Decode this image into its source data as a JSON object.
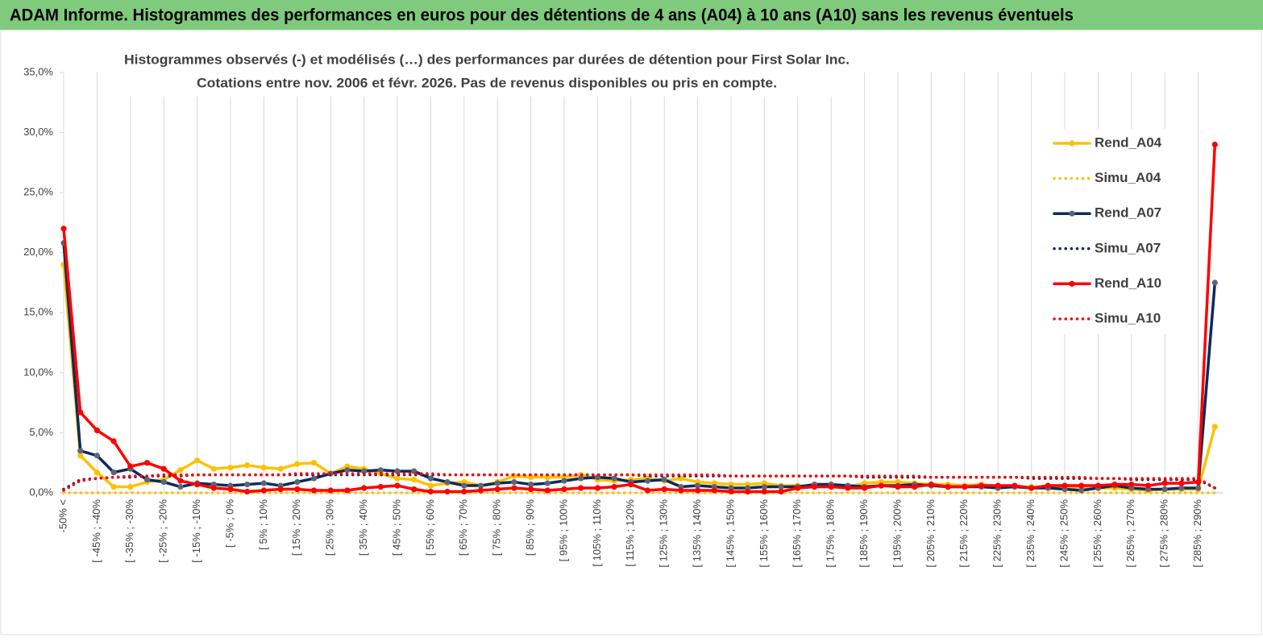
{
  "header": {
    "title": "ADAM Informe. Histogrammes des performances en euros pour des détentions de 4 ans (A04) à 10 ans (A10) sans les revenus éventuels"
  },
  "chart_data": {
    "type": "line",
    "title": [
      "Histogrammes observés (-) et modélisés (…) des performances par durées de détention pour First Solar Inc.",
      "Cotations entre nov. 2006 et févr. 2026. Pas de revenus disponibles ou pris en compte."
    ],
    "categories": [
      "-50% <",
      null,
      "[ -45% ; -40%",
      null,
      "[ -35% ; -30%",
      null,
      "[ -25% ; -20%",
      null,
      "[ -15% ; -10%",
      null,
      "[ -5% ; 0%",
      null,
      "[ 5% ; 10%",
      null,
      "[ 15% ; 20%",
      null,
      "[ 25% ; 30%",
      null,
      "[ 35% ; 40%",
      null,
      "[ 45% ; 50%",
      null,
      "[ 55% ; 60%",
      null,
      "[ 65% ; 70%",
      null,
      "[ 75% ; 80%",
      null,
      "[ 85% ; 90%",
      null,
      "[ 95% ; 100%",
      null,
      "[ 105% ; 110%",
      null,
      "[ 115% ; 120%",
      null,
      "[ 125% ; 130%",
      null,
      "[ 135% ; 140%",
      null,
      "[ 145% ; 150%",
      null,
      "[ 155% ; 160%",
      null,
      "[ 165% ; 170%",
      null,
      "[ 175% ; 180%",
      null,
      "[ 185% ; 190%",
      null,
      "[ 195% ; 200%",
      null,
      "[ 205% ; 210%",
      null,
      "[ 215% ; 220%",
      null,
      "[ 225% ; 230%",
      null,
      "[ 235% ; 240%",
      null,
      "[ 245% ; 250%",
      null,
      "[ 255% ; 260%",
      null,
      "[ 265% ; 270%",
      null,
      "[ 275% ; 280%",
      null,
      "[ 285% ; 290%",
      null
    ],
    "series": [
      {
        "name": "Rend_A04",
        "color": "#ffc000",
        "marker_color": "#ffc000",
        "style": "solid",
        "values": [
          19.0,
          3.1,
          1.7,
          0.5,
          0.5,
          0.9,
          1.1,
          1.9,
          2.7,
          2.0,
          2.1,
          2.3,
          2.1,
          2.0,
          2.4,
          2.5,
          1.6,
          2.2,
          2.0,
          1.6,
          1.2,
          1.1,
          0.6,
          0.8,
          0.9,
          0.6,
          0.9,
          1.4,
          1.3,
          1.3,
          1.3,
          1.5,
          1.1,
          1.0,
          1.1,
          1.2,
          1.0,
          1.2,
          0.9,
          0.8,
          0.7,
          0.7,
          0.8,
          0.6,
          0.6,
          0.5,
          0.6,
          0.5,
          0.8,
          0.9,
          0.9,
          0.8,
          0.7,
          0.7,
          0.6,
          0.7,
          0.5,
          0.5,
          0.5,
          0.4,
          0.4,
          0.5,
          0.4,
          0.4,
          0.3,
          0.2,
          0.3,
          0.3,
          0.3,
          5.5
        ]
      },
      {
        "name": "Simu_A04",
        "color": "#ffc000",
        "style": "dotted",
        "values": [
          0,
          0,
          0,
          0,
          0,
          0,
          0,
          0,
          0,
          0,
          0,
          0,
          0,
          0,
          0,
          0,
          0,
          0,
          0,
          0,
          0,
          0,
          0,
          0,
          0,
          0,
          0,
          0,
          0,
          0,
          0,
          0,
          0,
          0,
          0,
          0,
          0,
          0,
          0,
          0,
          0,
          0,
          0,
          0,
          0,
          0,
          0,
          0,
          0,
          0,
          0,
          0,
          0,
          0,
          0,
          0,
          0,
          0,
          0,
          0,
          0,
          0,
          0,
          0,
          0,
          0,
          0,
          0,
          0,
          0
        ]
      },
      {
        "name": "Rend_A07",
        "color": "#0c2a5c",
        "marker_color": "#5b6779",
        "style": "solid",
        "values": [
          20.8,
          3.5,
          3.1,
          1.7,
          2.0,
          1.1,
          0.9,
          0.5,
          0.8,
          0.7,
          0.6,
          0.7,
          0.8,
          0.6,
          0.9,
          1.2,
          1.6,
          1.9,
          1.8,
          1.9,
          1.8,
          1.8,
          1.2,
          0.9,
          0.6,
          0.6,
          0.8,
          0.9,
          0.7,
          0.8,
          1.0,
          1.2,
          1.3,
          1.2,
          0.9,
          1.0,
          1.1,
          0.5,
          0.6,
          0.5,
          0.4,
          0.4,
          0.5,
          0.5,
          0.5,
          0.7,
          0.7,
          0.6,
          0.5,
          0.6,
          0.6,
          0.7,
          0.6,
          0.5,
          0.5,
          0.5,
          0.4,
          0.5,
          0.4,
          0.4,
          0.3,
          0.2,
          0.4,
          0.6,
          0.4,
          0.3,
          0.3,
          0.4,
          0.4,
          17.5
        ]
      },
      {
        "name": "Simu_A07",
        "color": "#0c2a5c",
        "style": "dotted",
        "values": [
          0.3,
          1.1,
          1.2,
          1.3,
          1.3,
          1.4,
          1.4,
          1.4,
          1.5,
          1.5,
          1.5,
          1.5,
          1.5,
          1.5,
          1.5,
          1.5,
          1.5,
          1.5,
          1.5,
          1.5,
          1.5,
          1.5,
          1.5,
          1.5,
          1.5,
          1.5,
          1.5,
          1.5,
          1.5,
          1.5,
          1.5,
          1.5,
          1.5,
          1.5,
          1.5,
          1.4,
          1.4,
          1.4,
          1.4,
          1.4,
          1.4,
          1.4,
          1.4,
          1.4,
          1.4,
          1.4,
          1.4,
          1.4,
          1.3,
          1.3,
          1.3,
          1.3,
          1.3,
          1.3,
          1.3,
          1.3,
          1.3,
          1.3,
          1.2,
          1.2,
          1.2,
          1.2,
          1.2,
          1.2,
          1.1,
          1.1,
          1.1,
          1.1,
          1.1,
          0.4
        ]
      },
      {
        "name": "Rend_A10",
        "color": "#ff0000",
        "marker_color": "#ff0000",
        "style": "solid",
        "values": [
          22.0,
          6.7,
          5.2,
          4.3,
          2.2,
          2.5,
          2.0,
          1.0,
          0.7,
          0.4,
          0.3,
          0.1,
          0.2,
          0.3,
          0.3,
          0.2,
          0.2,
          0.2,
          0.4,
          0.5,
          0.6,
          0.3,
          0.1,
          0.1,
          0.1,
          0.2,
          0.3,
          0.4,
          0.3,
          0.2,
          0.3,
          0.4,
          0.4,
          0.5,
          0.7,
          0.2,
          0.3,
          0.2,
          0.2,
          0.2,
          0.1,
          0.1,
          0.1,
          0.1,
          0.4,
          0.5,
          0.5,
          0.4,
          0.4,
          0.6,
          0.5,
          0.5,
          0.7,
          0.5,
          0.5,
          0.6,
          0.6,
          0.6,
          0.4,
          0.6,
          0.6,
          0.6,
          0.6,
          0.7,
          0.7,
          0.6,
          0.8,
          0.8,
          0.9,
          29.0
        ]
      },
      {
        "name": "Simu_A10",
        "color": "#ff0000",
        "style": "dotted",
        "values": [
          0.2,
          1.0,
          1.2,
          1.3,
          1.4,
          1.4,
          1.5,
          1.5,
          1.5,
          1.5,
          1.5,
          1.5,
          1.5,
          1.5,
          1.6,
          1.6,
          1.6,
          1.6,
          1.6,
          1.6,
          1.6,
          1.6,
          1.6,
          1.5,
          1.5,
          1.5,
          1.5,
          1.5,
          1.5,
          1.5,
          1.5,
          1.5,
          1.5,
          1.5,
          1.5,
          1.5,
          1.5,
          1.5,
          1.5,
          1.5,
          1.4,
          1.4,
          1.4,
          1.4,
          1.4,
          1.4,
          1.4,
          1.4,
          1.4,
          1.4,
          1.4,
          1.4,
          1.3,
          1.3,
          1.3,
          1.3,
          1.3,
          1.3,
          1.3,
          1.3,
          1.3,
          1.3,
          1.2,
          1.2,
          1.2,
          1.2,
          1.2,
          1.2,
          1.2,
          0.4
        ]
      }
    ],
    "ylim": [
      0,
      35
    ],
    "yticks": [
      {
        "value": 0,
        "label": "0,0%"
      },
      {
        "value": 5,
        "label": "5,0%"
      },
      {
        "value": 10,
        "label": "10,0%"
      },
      {
        "value": 15,
        "label": "15,0%"
      },
      {
        "value": 20,
        "label": "20,0%"
      },
      {
        "value": 25,
        "label": "25,0%"
      },
      {
        "value": 30,
        "label": "30,0%"
      },
      {
        "value": 35,
        "label": "35,0%"
      }
    ],
    "grid": "vertical",
    "legend": "right"
  }
}
